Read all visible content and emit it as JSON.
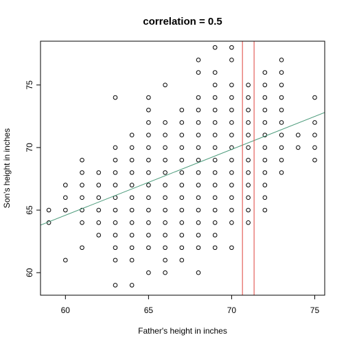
{
  "chart_data": {
    "type": "scatter",
    "title": "correlation = 0.5",
    "xlabel": "Father's height in inches",
    "ylabel": "Son's height in inches",
    "xlim": [
      58.5,
      75.6
    ],
    "ylim": [
      58.2,
      78.5
    ],
    "xticks": [
      60,
      65,
      70,
      75
    ],
    "yticks": [
      60,
      65,
      70,
      75
    ],
    "grid": false,
    "points": [
      [
        59,
        64
      ],
      [
        59,
        65
      ],
      [
        60,
        61
      ],
      [
        60,
        65
      ],
      [
        60,
        66
      ],
      [
        60,
        67
      ],
      [
        61,
        62
      ],
      [
        61,
        64
      ],
      [
        61,
        65
      ],
      [
        61,
        66
      ],
      [
        61,
        67
      ],
      [
        61,
        68
      ],
      [
        61,
        69
      ],
      [
        62,
        63
      ],
      [
        62,
        64
      ],
      [
        62,
        65
      ],
      [
        62,
        66
      ],
      [
        62,
        67
      ],
      [
        62,
        68
      ],
      [
        63,
        59
      ],
      [
        63,
        61
      ],
      [
        63,
        62
      ],
      [
        63,
        63
      ],
      [
        63,
        64
      ],
      [
        63,
        65
      ],
      [
        63,
        66
      ],
      [
        63,
        67
      ],
      [
        63,
        68
      ],
      [
        63,
        69
      ],
      [
        63,
        70
      ],
      [
        63,
        74
      ],
      [
        64,
        59
      ],
      [
        64,
        61
      ],
      [
        64,
        62
      ],
      [
        64,
        63
      ],
      [
        64,
        64
      ],
      [
        64,
        65
      ],
      [
        64,
        66
      ],
      [
        64,
        67
      ],
      [
        64,
        68
      ],
      [
        64,
        69
      ],
      [
        64,
        70
      ],
      [
        64,
        71
      ],
      [
        65,
        60
      ],
      [
        65,
        62
      ],
      [
        65,
        63
      ],
      [
        65,
        64
      ],
      [
        65,
        65
      ],
      [
        65,
        66
      ],
      [
        65,
        67
      ],
      [
        65,
        68
      ],
      [
        65,
        69
      ],
      [
        65,
        70
      ],
      [
        65,
        71
      ],
      [
        65,
        72
      ],
      [
        65,
        73
      ],
      [
        65,
        74
      ],
      [
        66,
        60
      ],
      [
        66,
        61
      ],
      [
        66,
        62
      ],
      [
        66,
        63
      ],
      [
        66,
        64
      ],
      [
        66,
        65
      ],
      [
        66,
        66
      ],
      [
        66,
        67
      ],
      [
        66,
        68
      ],
      [
        66,
        69
      ],
      [
        66,
        70
      ],
      [
        66,
        71
      ],
      [
        66,
        72
      ],
      [
        66,
        75
      ],
      [
        67,
        61
      ],
      [
        67,
        62
      ],
      [
        67,
        63
      ],
      [
        67,
        64
      ],
      [
        67,
        65
      ],
      [
        67,
        66
      ],
      [
        67,
        67
      ],
      [
        67,
        68
      ],
      [
        67,
        69
      ],
      [
        67,
        70
      ],
      [
        67,
        71
      ],
      [
        67,
        72
      ],
      [
        67,
        73
      ],
      [
        68,
        60
      ],
      [
        68,
        62
      ],
      [
        68,
        63
      ],
      [
        68,
        64
      ],
      [
        68,
        65
      ],
      [
        68,
        66
      ],
      [
        68,
        67
      ],
      [
        68,
        68
      ],
      [
        68,
        69
      ],
      [
        68,
        70
      ],
      [
        68,
        71
      ],
      [
        68,
        72
      ],
      [
        68,
        73
      ],
      [
        68,
        74
      ],
      [
        68,
        76
      ],
      [
        68,
        77
      ],
      [
        69,
        62
      ],
      [
        69,
        63
      ],
      [
        69,
        64
      ],
      [
        69,
        65
      ],
      [
        69,
        66
      ],
      [
        69,
        67
      ],
      [
        69,
        68
      ],
      [
        69,
        69
      ],
      [
        69,
        70
      ],
      [
        69,
        71
      ],
      [
        69,
        72
      ],
      [
        69,
        73
      ],
      [
        69,
        74
      ],
      [
        69,
        75
      ],
      [
        69,
        76
      ],
      [
        69,
        78
      ],
      [
        70,
        62
      ],
      [
        70,
        64
      ],
      [
        70,
        65
      ],
      [
        70,
        66
      ],
      [
        70,
        67
      ],
      [
        70,
        68
      ],
      [
        70,
        69
      ],
      [
        70,
        70
      ],
      [
        70,
        71
      ],
      [
        70,
        72
      ],
      [
        70,
        73
      ],
      [
        70,
        74
      ],
      [
        70,
        75
      ],
      [
        70,
        77
      ],
      [
        70,
        78
      ],
      [
        71,
        64
      ],
      [
        71,
        65
      ],
      [
        71,
        66
      ],
      [
        71,
        67
      ],
      [
        71,
        68
      ],
      [
        71,
        69
      ],
      [
        71,
        70
      ],
      [
        71,
        71
      ],
      [
        71,
        72
      ],
      [
        71,
        73
      ],
      [
        71,
        74
      ],
      [
        71,
        75
      ],
      [
        72,
        65
      ],
      [
        72,
        66
      ],
      [
        72,
        67
      ],
      [
        72,
        68
      ],
      [
        72,
        69
      ],
      [
        72,
        70
      ],
      [
        72,
        71
      ],
      [
        72,
        72
      ],
      [
        72,
        73
      ],
      [
        72,
        74
      ],
      [
        72,
        75
      ],
      [
        72,
        76
      ],
      [
        73,
        68
      ],
      [
        73,
        69
      ],
      [
        73,
        70
      ],
      [
        73,
        71
      ],
      [
        73,
        72
      ],
      [
        73,
        73
      ],
      [
        73,
        74
      ],
      [
        73,
        75
      ],
      [
        73,
        76
      ],
      [
        73,
        77
      ],
      [
        74,
        70
      ],
      [
        74,
        71
      ],
      [
        75,
        69
      ],
      [
        75,
        70
      ],
      [
        75,
        71
      ],
      [
        75,
        72
      ],
      [
        75,
        74
      ]
    ],
    "regression_line": {
      "points": [
        [
          58.5,
          63.8
        ],
        [
          75.6,
          72.8
        ]
      ],
      "color": "#4a9a7a"
    },
    "vertical_lines": {
      "x": [
        70.65,
        71.35
      ],
      "color": "#e0403a"
    },
    "point_color": "#000000"
  }
}
